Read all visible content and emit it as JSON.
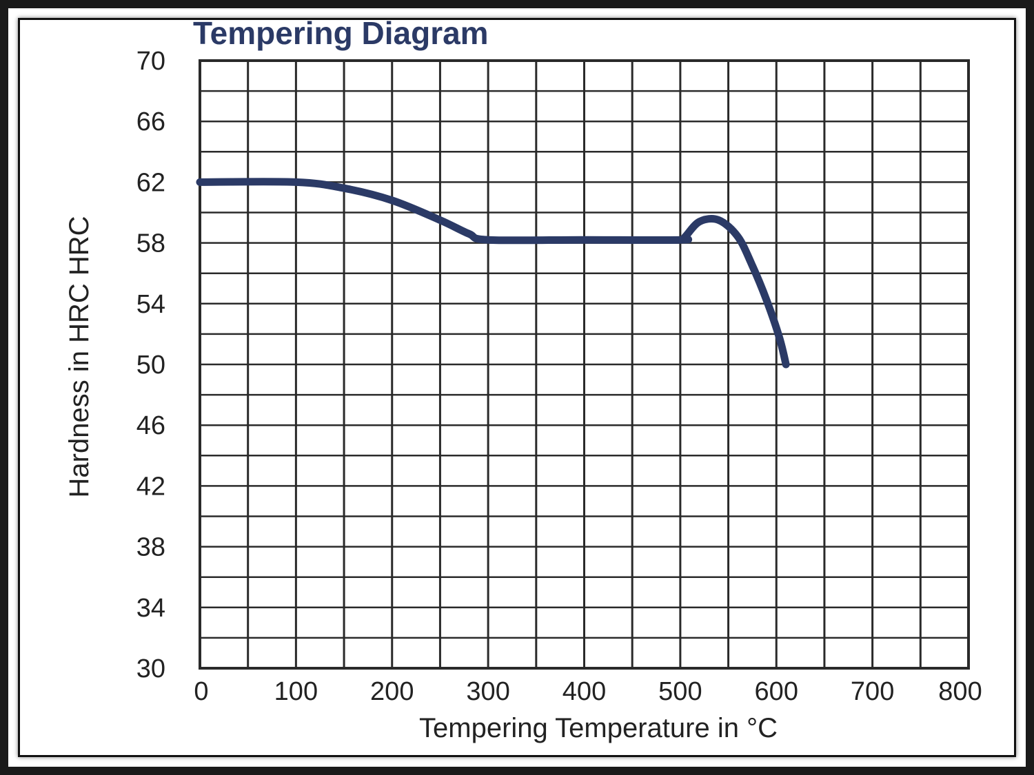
{
  "chart_data": {
    "type": "line",
    "title": "Tempering Diagram",
    "xlabel": "Tempering Temperature in °C",
    "ylabel": "Hardness in HRC  HRC",
    "xlim": [
      0,
      800
    ],
    "ylim": [
      30,
      70
    ],
    "x_ticks": [
      "0",
      "100",
      "200",
      "300",
      "400",
      "500",
      "600",
      "700",
      "800"
    ],
    "y_ticks": [
      "70",
      "66",
      "62",
      "58",
      "54",
      "50",
      "46",
      "42",
      "38",
      "34",
      "30"
    ],
    "grid": true,
    "series": [
      {
        "x": [
          0,
          100,
          150,
          200,
          250,
          280,
          300,
          400,
          500,
          505,
          520,
          540,
          560,
          575,
          590,
          603,
          610
        ],
        "y": [
          62,
          62,
          61.6,
          60.8,
          59.5,
          58.6,
          58.2,
          58.2,
          58.2,
          58.4,
          59.4,
          59.5,
          58.4,
          56.5,
          54.2,
          51.8,
          50
        ]
      }
    ],
    "colors": {
      "line": "#2b3a66",
      "grid": "#2a2a2a",
      "title": "#2b3a66"
    }
  }
}
